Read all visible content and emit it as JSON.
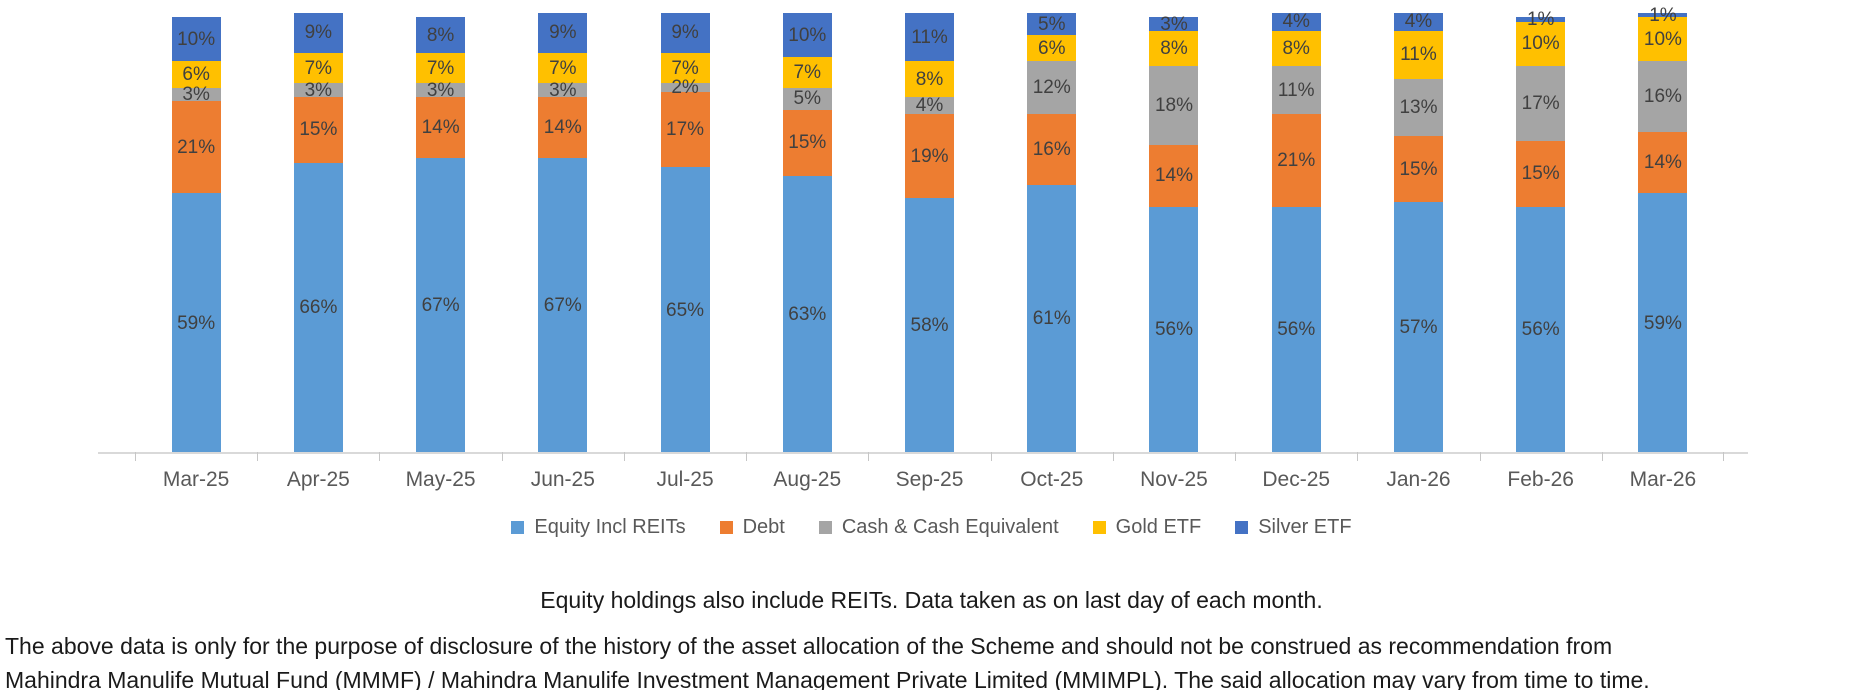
{
  "chart_data": {
    "type": "bar",
    "stacked": true,
    "title": "",
    "categories": [
      "Mar-25",
      "Apr-25",
      "May-25",
      "Jun-25",
      "Jul-25",
      "Aug-25",
      "Sep-25",
      "Oct-25",
      "Nov-25",
      "Dec-25",
      "Jan-26",
      "Feb-26",
      "Mar-26"
    ],
    "series": [
      {
        "name": "Equity Incl REITs",
        "color": "#5B9BD5",
        "values": [
          59,
          66,
          67,
          67,
          65,
          63,
          58,
          61,
          56,
          56,
          57,
          56,
          59
        ]
      },
      {
        "name": "Debt",
        "color": "#ED7D31",
        "values": [
          21,
          15,
          14,
          14,
          17,
          15,
          19,
          16,
          14,
          21,
          15,
          15,
          14
        ]
      },
      {
        "name": "Cash & Cash Equivalent",
        "color": "#A5A5A5",
        "values": [
          3,
          3,
          3,
          3,
          2,
          5,
          4,
          12,
          18,
          11,
          13,
          17,
          16
        ]
      },
      {
        "name": "Gold ETF",
        "color": "#FFC000",
        "values": [
          6,
          7,
          7,
          7,
          7,
          7,
          8,
          6,
          8,
          8,
          11,
          10,
          10
        ]
      },
      {
        "name": "Silver ETF",
        "color": "#4472C4",
        "values": [
          10,
          9,
          8,
          9,
          9,
          10,
          11,
          5,
          3,
          4,
          4,
          1,
          1
        ]
      }
    ],
    "value_suffix": "%",
    "ylim": [
      0,
      100
    ],
    "grid": false,
    "legend_position": "bottom",
    "axis_color": "#D9D9D9",
    "data_label_color": "#404040",
    "tick_label_color": "#595959"
  },
  "footnote": "Equity holdings also include REITs. Data taken as on last day of each month.",
  "disclaimer_lines": [
    "The above data is only for the purpose of disclosure of the history of the asset allocation of the Scheme and should not be construed as recommendation from",
    "Mahindra Manulife Mutual Fund (MMMF) / Mahindra Manulife Investment Management Private Limited (MMIMPL). The said allocation may vary from time to time."
  ]
}
